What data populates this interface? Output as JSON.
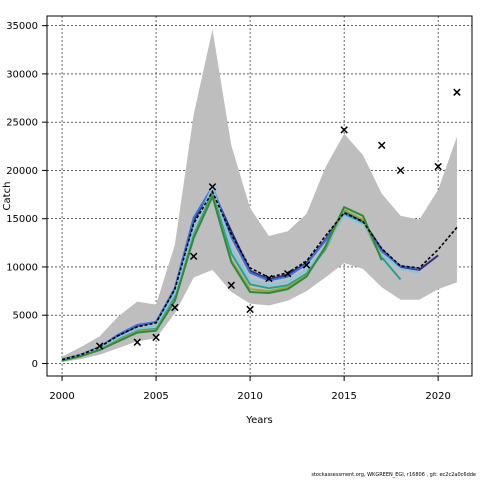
{
  "chart_data": {
    "type": "line",
    "xlabel": "Years",
    "ylabel": "Catch",
    "xlim": [
      1999.2,
      2021.8
    ],
    "ylim": [
      -1300,
      36000
    ],
    "x_ticks": [
      2000,
      2005,
      2010,
      2015,
      2020
    ],
    "y_ticks": [
      0,
      5000,
      10000,
      15000,
      20000,
      25000,
      30000,
      35000
    ],
    "grid": true,
    "colors": {
      "band": "#bebebe",
      "median": "#000000",
      "observed": "#000000",
      "series": [
        "#2f2a7e",
        "#3f6fd8",
        "#27a096",
        "#86c5e0",
        "#9aa83a",
        "#2d8a3a"
      ]
    },
    "uncertainty_band": {
      "x": [
        2000,
        2001,
        2002,
        2003,
        2004,
        2005,
        2006,
        2007,
        2008,
        2009,
        2010,
        2011,
        2012,
        2013,
        2014,
        2015,
        2016,
        2017,
        2018,
        2019,
        2020,
        2021
      ],
      "upper": [
        700,
        1700,
        2800,
        4900,
        6400,
        6100,
        12300,
        25800,
        34600,
        22600,
        16100,
        13200,
        13700,
        15500,
        20300,
        23800,
        21600,
        17600,
        15300,
        14900,
        18000,
        23500
      ],
      "lower": [
        150,
        450,
        900,
        1600,
        2300,
        2600,
        5200,
        8900,
        9700,
        7400,
        6200,
        6000,
        6500,
        7500,
        8900,
        10400,
        9800,
        7900,
        6600,
        6600,
        7700,
        8400
      ]
    },
    "median": {
      "x": [
        2000,
        2001,
        2002,
        2003,
        2004,
        2005,
        2006,
        2007,
        2008,
        2009,
        2010,
        2011,
        2012,
        2013,
        2014,
        2015,
        2016,
        2017,
        2018,
        2019,
        2020,
        2021
      ],
      "values": [
        400,
        900,
        1700,
        2900,
        3800,
        4200,
        7700,
        14500,
        17800,
        13400,
        9900,
        8900,
        9400,
        10600,
        13200,
        15600,
        14700,
        11900,
        10100,
        9900,
        11800,
        14100
      ]
    },
    "series": [
      {
        "x": [
          2000,
          2001,
          2002,
          2003,
          2004,
          2005,
          2006,
          2007,
          2008,
          2009,
          2010,
          2011,
          2012,
          2013,
          2014,
          2015,
          2016,
          2017,
          2018,
          2019,
          2020
        ],
        "values": [
          400,
          900,
          1700,
          2900,
          3900,
          4300,
          7700,
          14800,
          18000,
          13700,
          9600,
          8700,
          9200,
          10400,
          12800,
          15700,
          14800,
          11800,
          10000,
          9700,
          11200
        ]
      },
      {
        "x": [
          2000,
          2001,
          2002,
          2003,
          2004,
          2005,
          2006,
          2007,
          2008,
          2009,
          2010,
          2011,
          2012,
          2013,
          2014,
          2015,
          2016,
          2017,
          2018,
          2019
        ],
        "values": [
          400,
          900,
          1700,
          3000,
          4000,
          4300,
          7800,
          15100,
          18300,
          13100,
          9400,
          8600,
          9000,
          10300,
          12700,
          15500,
          14600,
          11600,
          10100,
          9800
        ]
      },
      {
        "x": [
          2000,
          2001,
          2002,
          2003,
          2004,
          2005,
          2006,
          2007,
          2008,
          2009,
          2010,
          2011,
          2012,
          2013,
          2014,
          2015,
          2016,
          2017,
          2018
        ],
        "values": [
          300,
          800,
          1500,
          2500,
          3400,
          3600,
          6900,
          13300,
          17700,
          11400,
          8200,
          7800,
          8100,
          9300,
          11800,
          15600,
          14500,
          11000,
          8700
        ]
      },
      {
        "x": [
          2000,
          2001,
          2002,
          2003,
          2004,
          2005,
          2006,
          2007,
          2008,
          2009,
          2010,
          2011,
          2012,
          2013,
          2014,
          2015,
          2016,
          2017,
          2018,
          2019
        ],
        "values": [
          350,
          850,
          1600,
          2700,
          3600,
          3900,
          7300,
          14000,
          18300,
          12000,
          8600,
          8100,
          8500,
          9700,
          12000,
          15300,
          14400,
          11200,
          9800,
          9400
        ]
      },
      {
        "x": [
          2000,
          2001,
          2002,
          2003,
          2004,
          2005,
          2006,
          2007,
          2008,
          2009,
          2010,
          2011,
          2012,
          2013,
          2014,
          2015,
          2016,
          2017
        ],
        "values": [
          300,
          750,
          1400,
          2400,
          3300,
          3500,
          6600,
          13100,
          17400,
          10700,
          7700,
          7500,
          7900,
          9100,
          12000,
          15900,
          14900,
          10900
        ]
      },
      {
        "x": [
          2000,
          2001,
          2002,
          2003,
          2004,
          2005,
          2006,
          2007,
          2008,
          2009,
          2010,
          2011,
          2012,
          2013,
          2014,
          2015,
          2016,
          2017
        ],
        "values": [
          300,
          750,
          1400,
          2300,
          3200,
          3400,
          6500,
          13000,
          17300,
          10500,
          7400,
          7300,
          7700,
          9000,
          12100,
          16200,
          15300,
          10700
        ]
      }
    ],
    "observed": {
      "x": [
        2002,
        2004,
        2005,
        2006,
        2007,
        2008,
        2009,
        2010,
        2011,
        2012,
        2013,
        2015,
        2017,
        2018,
        2020,
        2021
      ],
      "values": [
        1800,
        2200,
        2700,
        5800,
        11100,
        18300,
        8100,
        5600,
        8800,
        9300,
        10200,
        24200,
        22600,
        20000,
        20400,
        28100
      ]
    }
  },
  "footer_text": "stockassessment.org,  WKGREEN_EGI,  r16806 ,  git: ec2c2a0c6dde"
}
